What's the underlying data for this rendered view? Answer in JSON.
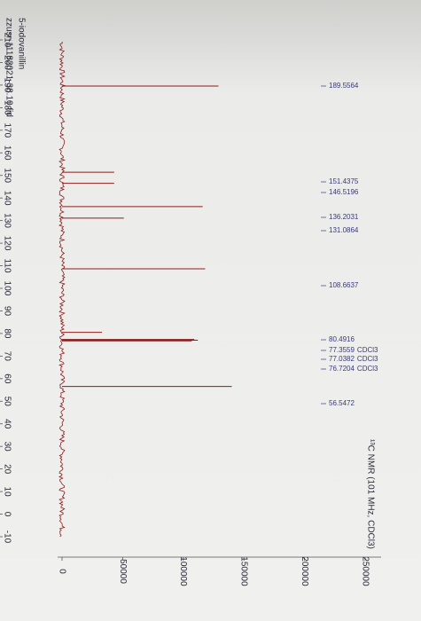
{
  "chart_data": {
    "type": "spectrum",
    "title": "zzusr-11182021-38.10.fid",
    "subtitle": "5-iodovanillin",
    "annotation": "¹³C NMR (101 MHz, CDCl3)",
    "x": [
      189.5564,
      151.4375,
      146.5196,
      136.2031,
      131.0864,
      108.6637,
      80.4916,
      77.3559,
      77.0382,
      76.7204,
      56.5472
    ],
    "values": [
      129000,
      43000,
      43000,
      116000,
      51000,
      118000,
      33000,
      109000,
      112000,
      107000,
      140000
    ],
    "peak_notes": [
      null,
      null,
      null,
      null,
      null,
      null,
      null,
      "CDCl3",
      "CDCl3",
      "CDCl3",
      null
    ],
    "color": "#8b1c1c",
    "xlim": [
      210,
      -10
    ],
    "xticks": [
      210,
      200,
      190,
      180,
      170,
      160,
      150,
      140,
      130,
      120,
      110,
      100,
      90,
      80,
      70,
      60,
      50,
      40,
      30,
      20,
      10,
      0,
      -10
    ],
    "ylim": [
      0,
      250000
    ],
    "yticks": [
      0,
      50000,
      100000,
      150000,
      200000,
      250000
    ]
  }
}
